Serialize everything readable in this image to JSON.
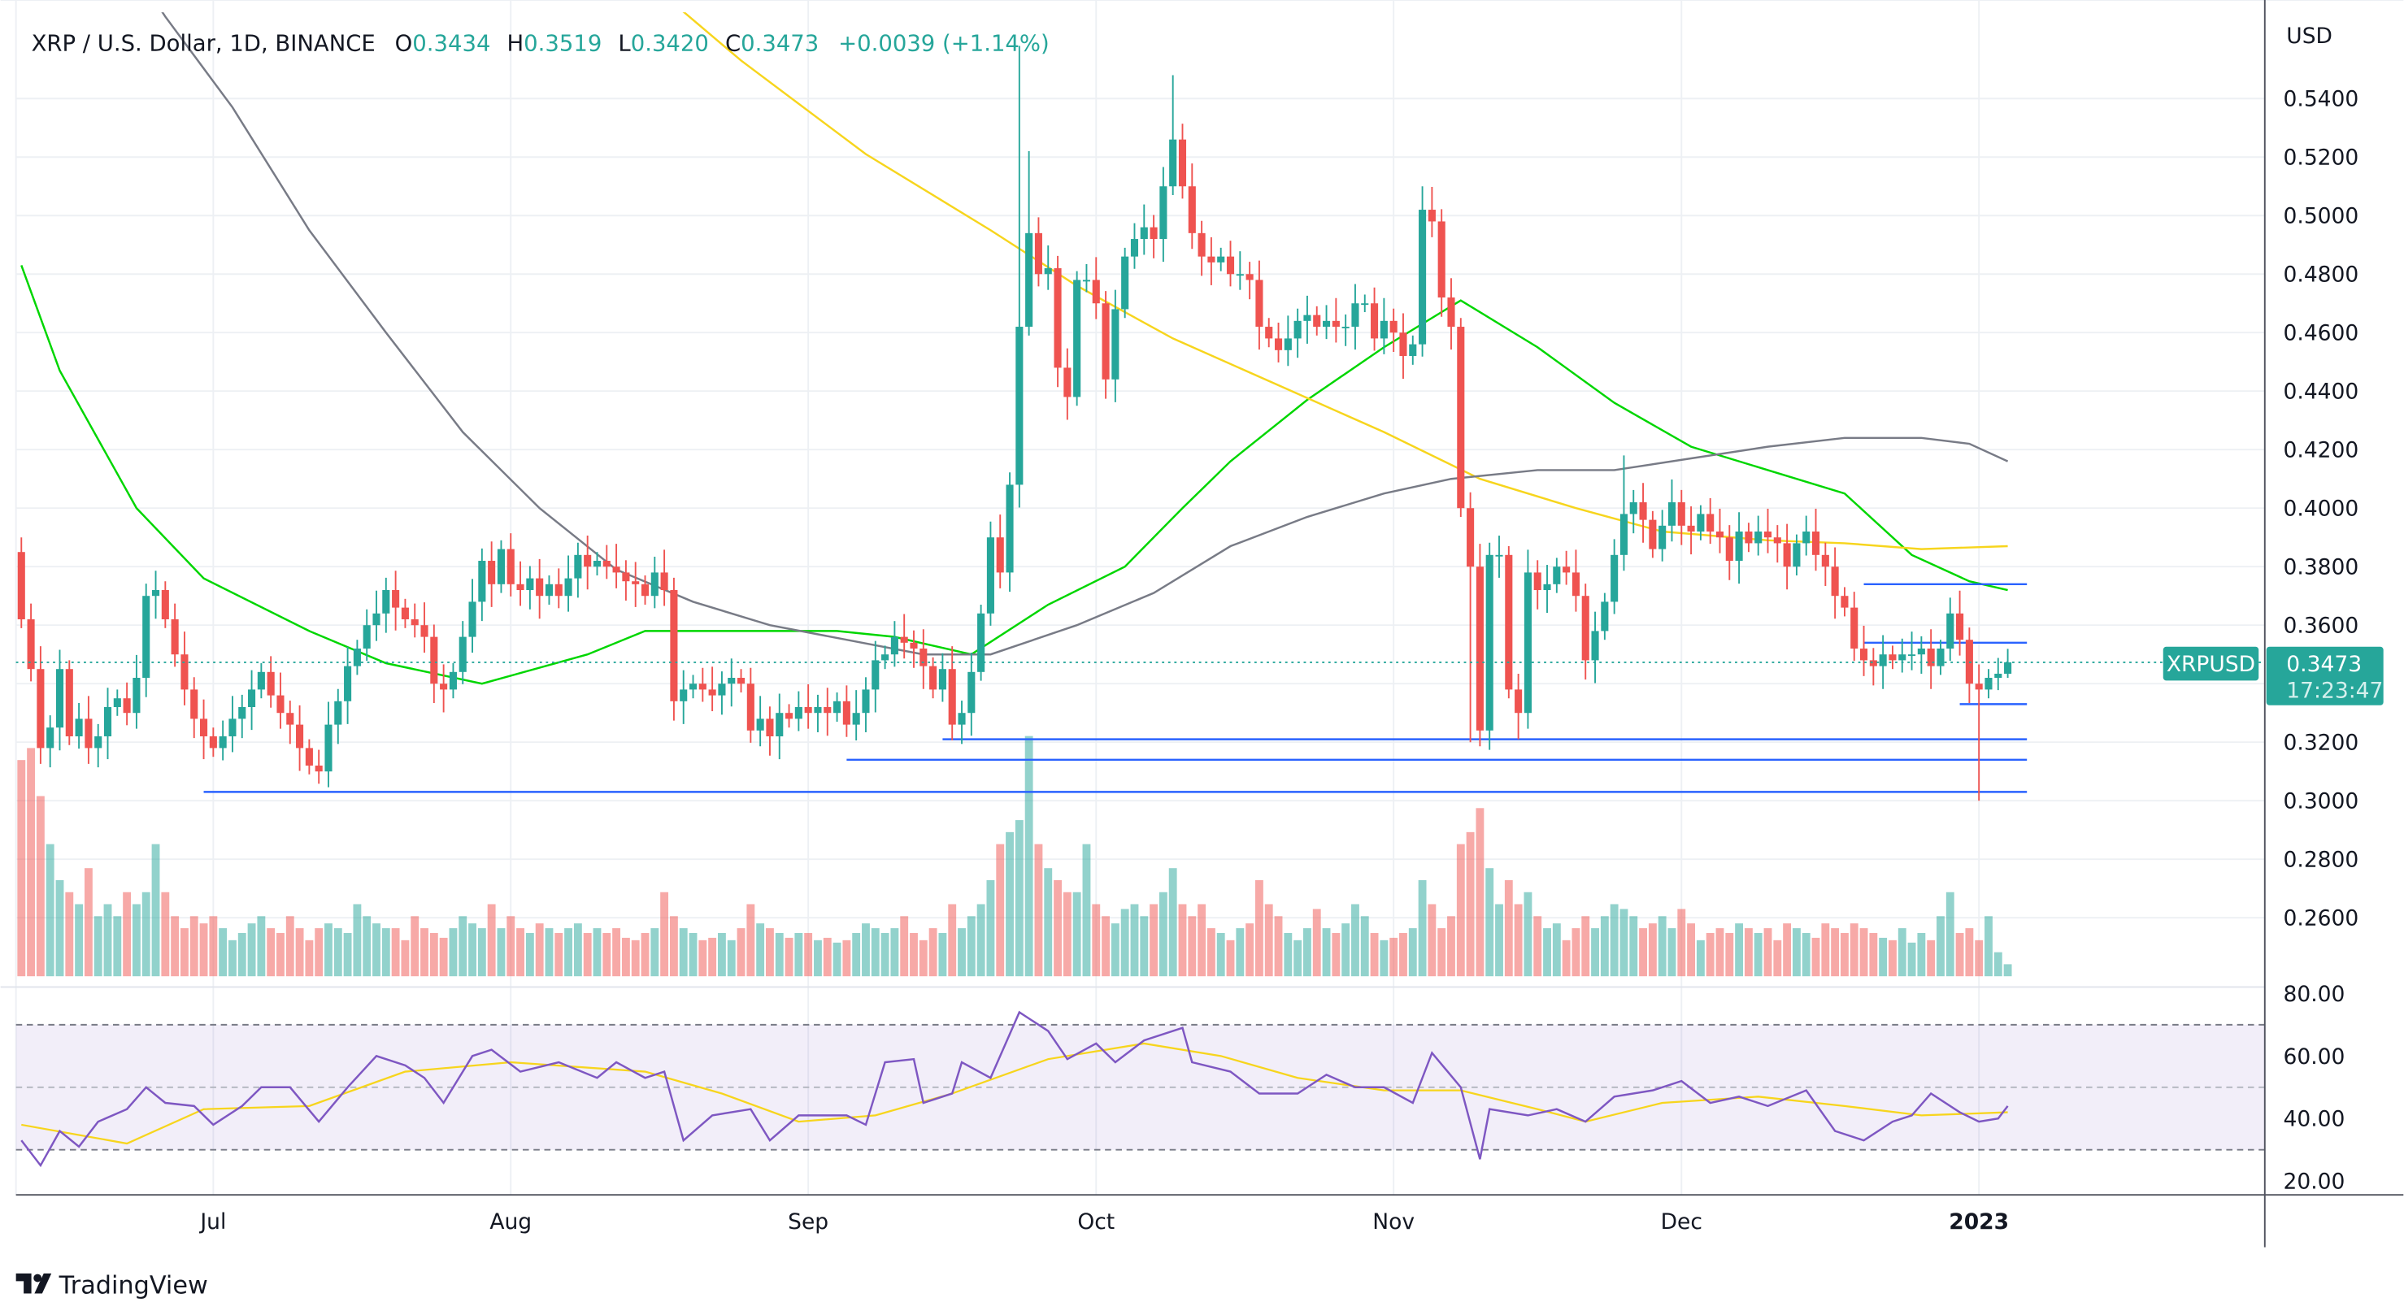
{
  "header": {
    "symbol_title": "XRP / U.S. Dollar, 1D, BINANCE",
    "o_label": "O",
    "o_value": "0.3434",
    "h_label": "H",
    "h_value": "0.3519",
    "l_label": "L",
    "l_value": "0.3420",
    "c_label": "C",
    "c_value": "0.3473",
    "change": "+0.0039 (+1.14%)"
  },
  "price_axis": {
    "currency": "USD",
    "labels": [
      "0.5400",
      "0.5200",
      "0.5000",
      "0.4800",
      "0.4600",
      "0.4400",
      "0.4200",
      "0.4000",
      "0.3800",
      "0.3600",
      "0.3200",
      "0.3000",
      "0.2800",
      "0.2600"
    ]
  },
  "last_price": {
    "symbol": "XRPUSD",
    "price": "0.3473",
    "countdown": "17:23:47"
  },
  "time_axis": {
    "labels": [
      "Jul",
      "Aug",
      "Sep",
      "Oct",
      "Nov",
      "Dec",
      "2023"
    ]
  },
  "rsi_axis": {
    "labels": [
      "80.00",
      "60.00",
      "40.00",
      "20.00"
    ]
  },
  "branding": {
    "logo_text": "TradingView"
  },
  "colors": {
    "up": "#26a69a",
    "down": "#ef5350",
    "ma_fast": "#00d600",
    "ma_mid": "#f7d51d",
    "ma_slow": "#787b86",
    "level": "#2962ff",
    "rsi": "#7e57c2",
    "rsi_ma": "#f7d51d"
  },
  "chart_data": {
    "type": "candlestick",
    "title": "XRP / U.S. Dollar, 1D, BINANCE",
    "x_start": "2022-06-11",
    "x_end": "2023-01-04",
    "x_unit": "day index from 2022-06-11",
    "ylim": [
      0.245,
      0.575
    ],
    "first_open": 0.385,
    "closes": [
      0.362,
      0.345,
      0.318,
      0.325,
      0.345,
      0.322,
      0.328,
      0.318,
      0.322,
      0.332,
      0.335,
      0.33,
      0.342,
      0.37,
      0.372,
      0.362,
      0.35,
      0.338,
      0.328,
      0.322,
      0.318,
      0.322,
      0.328,
      0.332,
      0.338,
      0.344,
      0.336,
      0.33,
      0.326,
      0.318,
      0.312,
      0.31,
      0.326,
      0.334,
      0.346,
      0.352,
      0.36,
      0.364,
      0.372,
      0.366,
      0.362,
      0.36,
      0.356,
      0.34,
      0.338,
      0.344,
      0.356,
      0.368,
      0.382,
      0.374,
      0.386,
      0.374,
      0.372,
      0.376,
      0.37,
      0.374,
      0.37,
      0.376,
      0.384,
      0.38,
      0.382,
      0.38,
      0.378,
      0.375,
      0.374,
      0.37,
      0.378,
      0.372,
      0.334,
      0.338,
      0.34,
      0.338,
      0.336,
      0.34,
      0.342,
      0.34,
      0.324,
      0.328,
      0.322,
      0.33,
      0.328,
      0.332,
      0.33,
      0.332,
      0.33,
      0.334,
      0.326,
      0.33,
      0.338,
      0.348,
      0.35,
      0.356,
      0.354,
      0.352,
      0.346,
      0.338,
      0.345,
      0.326,
      0.33,
      0.344,
      0.364,
      0.39,
      0.378,
      0.408,
      0.462,
      0.494,
      0.48,
      0.482,
      0.448,
      0.438,
      0.478,
      0.478,
      0.47,
      0.444,
      0.468,
      0.486,
      0.492,
      0.496,
      0.492,
      0.51,
      0.526,
      0.51,
      0.494,
      0.486,
      0.484,
      0.486,
      0.48,
      0.48,
      0.478,
      0.462,
      0.458,
      0.454,
      0.458,
      0.464,
      0.466,
      0.462,
      0.464,
      0.462,
      0.462,
      0.47,
      0.47,
      0.458,
      0.464,
      0.46,
      0.452,
      0.456,
      0.502,
      0.498,
      0.472,
      0.462,
      0.4,
      0.38,
      0.324,
      0.384,
      0.384,
      0.338,
      0.33,
      0.378,
      0.372,
      0.374,
      0.38,
      0.378,
      0.37,
      0.348,
      0.358,
      0.368,
      0.384,
      0.398,
      0.402,
      0.396,
      0.386,
      0.394,
      0.402,
      0.394,
      0.392,
      0.398,
      0.392,
      0.39,
      0.382,
      0.392,
      0.388,
      0.392,
      0.39,
      0.388,
      0.38,
      0.388,
      0.392,
      0.384,
      0.38,
      0.37,
      0.366,
      0.352,
      0.348,
      0.346,
      0.35,
      0.348,
      0.35,
      0.35,
      0.352,
      0.346,
      0.352,
      0.364,
      0.355,
      0.34,
      0.338,
      0.342,
      0.3434,
      0.3473
    ],
    "wick_extremes": [
      {
        "day": 0,
        "high": 0.39
      },
      {
        "day": 104,
        "high": 0.558
      },
      {
        "day": 105,
        "high": 0.522
      },
      {
        "day": 120,
        "high": 0.548
      },
      {
        "day": 146,
        "high": 0.51
      },
      {
        "day": 151,
        "low": 0.32
      },
      {
        "day": 156,
        "low": 0.321
      },
      {
        "day": 167,
        "high": 0.418
      },
      {
        "day": 204,
        "low": 0.3
      },
      {
        "day": 207,
        "high": 0.3519,
        "low": 0.342
      }
    ],
    "volume_relative": [
      90,
      95,
      75,
      55,
      40,
      35,
      30,
      45,
      25,
      30,
      25,
      35,
      30,
      35,
      55,
      35,
      25,
      20,
      25,
      22,
      25,
      20,
      15,
      18,
      22,
      25,
      20,
      18,
      25,
      20,
      15,
      20,
      22,
      20,
      18,
      30,
      25,
      22,
      20,
      20,
      15,
      25,
      20,
      18,
      16,
      20,
      25,
      22,
      20,
      30,
      20,
      25,
      20,
      18,
      22,
      20,
      18,
      20,
      22,
      18,
      20,
      18,
      20,
      16,
      15,
      18,
      20,
      35,
      25,
      20,
      18,
      15,
      16,
      18,
      15,
      20,
      30,
      22,
      20,
      18,
      16,
      18,
      18,
      15,
      16,
      14,
      15,
      18,
      22,
      20,
      18,
      20,
      25,
      18,
      15,
      20,
      18,
      30,
      20,
      25,
      30,
      40,
      55,
      60,
      65,
      100,
      55,
      45,
      40,
      35,
      35,
      55,
      30,
      25,
      22,
      28,
      30,
      25,
      30,
      35,
      45,
      30,
      25,
      30,
      20,
      18,
      15,
      20,
      22,
      40,
      30,
      25,
      18,
      15,
      20,
      28,
      20,
      18,
      22,
      30,
      25,
      18,
      15,
      16,
      18,
      20,
      40,
      30,
      20,
      25,
      55,
      60,
      70,
      45,
      30,
      40,
      30,
      35,
      25,
      20,
      22,
      15,
      20,
      25,
      20,
      25,
      30,
      28,
      25,
      20,
      22,
      25,
      20,
      28,
      22,
      15,
      18,
      20,
      18,
      22,
      20,
      18,
      20,
      15,
      22,
      20,
      18,
      16,
      22,
      20,
      18,
      22,
      20,
      18,
      16,
      15,
      20,
      14,
      18,
      15,
      25,
      35,
      18,
      20,
      15,
      25,
      10,
      5
    ],
    "moving_averages": [
      {
        "name": "MA fast (green)",
        "points": [
          [
            0,
            0.483
          ],
          [
            4,
            0.447
          ],
          [
            12,
            0.4
          ],
          [
            19,
            0.376
          ],
          [
            30,
            0.358
          ],
          [
            38,
            0.347
          ],
          [
            48,
            0.34
          ],
          [
            59,
            0.35
          ],
          [
            65,
            0.358
          ],
          [
            75,
            0.358
          ],
          [
            85,
            0.358
          ],
          [
            91,
            0.356
          ],
          [
            99,
            0.35
          ],
          [
            107,
            0.367
          ],
          [
            115,
            0.38
          ],
          [
            121,
            0.4
          ],
          [
            126,
            0.416
          ],
          [
            134,
            0.437
          ],
          [
            142,
            0.455
          ],
          [
            150,
            0.471
          ],
          [
            158,
            0.455
          ],
          [
            166,
            0.436
          ],
          [
            174,
            0.421
          ],
          [
            182,
            0.413
          ],
          [
            190,
            0.405
          ],
          [
            197,
            0.384
          ],
          [
            203,
            0.375
          ],
          [
            207,
            0.372
          ]
        ]
      },
      {
        "name": "MA mid (yellow)",
        "points": [
          [
            66,
            0.578
          ],
          [
            75,
            0.553
          ],
          [
            88,
            0.521
          ],
          [
            101,
            0.495
          ],
          [
            110,
            0.476
          ],
          [
            120,
            0.458
          ],
          [
            131,
            0.442
          ],
          [
            142,
            0.426
          ],
          [
            152,
            0.41
          ],
          [
            162,
            0.4
          ],
          [
            171,
            0.392
          ],
          [
            182,
            0.389
          ],
          [
            190,
            0.388
          ],
          [
            198,
            0.386
          ],
          [
            207,
            0.387
          ]
        ]
      },
      {
        "name": "MA slow (gray)",
        "points": [
          [
            13,
            0.578
          ],
          [
            15,
            0.568
          ],
          [
            22,
            0.537
          ],
          [
            30,
            0.495
          ],
          [
            38,
            0.46
          ],
          [
            46,
            0.426
          ],
          [
            54,
            0.4
          ],
          [
            62,
            0.379
          ],
          [
            70,
            0.368
          ],
          [
            78,
            0.36
          ],
          [
            86,
            0.355
          ],
          [
            94,
            0.35
          ],
          [
            101,
            0.35
          ],
          [
            110,
            0.36
          ],
          [
            118,
            0.371
          ],
          [
            126,
            0.387
          ],
          [
            134,
            0.397
          ],
          [
            142,
            0.405
          ],
          [
            149,
            0.41
          ],
          [
            158,
            0.413
          ],
          [
            166,
            0.413
          ],
          [
            174,
            0.417
          ],
          [
            182,
            0.421
          ],
          [
            190,
            0.424
          ],
          [
            198,
            0.424
          ],
          [
            203,
            0.422
          ],
          [
            207,
            0.416
          ]
        ]
      }
    ],
    "horizontal_levels": [
      {
        "price": 0.303,
        "from_day": 19,
        "to_day": 209
      },
      {
        "price": 0.314,
        "from_day": 86,
        "to_day": 209
      },
      {
        "price": 0.321,
        "from_day": 96,
        "to_day": 209
      },
      {
        "price": 0.333,
        "from_day": 202,
        "to_day": 209
      },
      {
        "price": 0.354,
        "from_day": 192,
        "to_day": 209
      },
      {
        "price": 0.374,
        "from_day": 192,
        "to_day": 209
      }
    ],
    "month_ticks": [
      {
        "label": "Jul",
        "day": 20
      },
      {
        "label": "Aug",
        "day": 51
      },
      {
        "label": "Sep",
        "day": 82
      },
      {
        "label": "Oct",
        "day": 112
      },
      {
        "label": "Nov",
        "day": 143
      },
      {
        "label": "Dec",
        "day": 173
      },
      {
        "label": "2023",
        "day": 204
      }
    ],
    "rsi": {
      "ylim": [
        20,
        80
      ],
      "upper_band": 70,
      "middle": 50,
      "lower_band": 30,
      "points": [
        [
          0,
          33
        ],
        [
          2,
          25
        ],
        [
          4,
          36
        ],
        [
          6,
          31
        ],
        [
          8,
          39
        ],
        [
          11,
          43
        ],
        [
          13,
          50
        ],
        [
          15,
          45
        ],
        [
          18,
          44
        ],
        [
          20,
          38
        ],
        [
          23,
          44
        ],
        [
          25,
          50
        ],
        [
          28,
          50
        ],
        [
          31,
          39
        ],
        [
          34,
          50
        ],
        [
          37,
          60
        ],
        [
          40,
          57
        ],
        [
          42,
          53
        ],
        [
          44,
          45
        ],
        [
          47,
          60
        ],
        [
          49,
          62
        ],
        [
          52,
          55
        ],
        [
          56,
          58
        ],
        [
          60,
          53
        ],
        [
          62,
          58
        ],
        [
          65,
          53
        ],
        [
          67,
          55
        ],
        [
          69,
          33
        ],
        [
          72,
          41
        ],
        [
          76,
          43
        ],
        [
          78,
          33
        ],
        [
          81,
          41
        ],
        [
          86,
          41
        ],
        [
          88,
          38
        ],
        [
          90,
          58
        ],
        [
          93,
          59
        ],
        [
          94,
          45
        ],
        [
          97,
          48
        ],
        [
          98,
          58
        ],
        [
          101,
          53
        ],
        [
          104,
          74
        ],
        [
          107,
          68
        ],
        [
          109,
          59
        ],
        [
          112,
          64
        ],
        [
          114,
          58
        ],
        [
          117,
          65
        ],
        [
          121,
          69
        ],
        [
          122,
          58
        ],
        [
          126,
          55
        ],
        [
          129,
          48
        ],
        [
          133,
          48
        ],
        [
          136,
          54
        ],
        [
          139,
          50
        ],
        [
          142,
          50
        ],
        [
          145,
          45
        ],
        [
          147,
          61
        ],
        [
          150,
          50
        ],
        [
          152,
          27
        ],
        [
          153,
          43
        ],
        [
          157,
          41
        ],
        [
          160,
          43
        ],
        [
          163,
          39
        ],
        [
          166,
          47
        ],
        [
          170,
          49
        ],
        [
          173,
          52
        ],
        [
          176,
          45
        ],
        [
          179,
          47
        ],
        [
          182,
          44
        ],
        [
          186,
          49
        ],
        [
          189,
          36
        ],
        [
          192,
          33
        ],
        [
          195,
          39
        ],
        [
          197,
          41
        ],
        [
          199,
          48
        ],
        [
          202,
          42
        ],
        [
          204,
          39
        ],
        [
          206,
          40
        ],
        [
          207,
          44
        ]
      ],
      "ma_points": [
        [
          0,
          38
        ],
        [
          11,
          32
        ],
        [
          19,
          43
        ],
        [
          30,
          44
        ],
        [
          40,
          55
        ],
        [
          51,
          58
        ],
        [
          65,
          55
        ],
        [
          73,
          48
        ],
        [
          81,
          39
        ],
        [
          89,
          41
        ],
        [
          97,
          48
        ],
        [
          107,
          59
        ],
        [
          117,
          64
        ],
        [
          125,
          60
        ],
        [
          133,
          53
        ],
        [
          142,
          49
        ],
        [
          150,
          49
        ],
        [
          158,
          43
        ],
        [
          163,
          39
        ],
        [
          171,
          45
        ],
        [
          181,
          47
        ],
        [
          190,
          44
        ],
        [
          198,
          41
        ],
        [
          207,
          42
        ]
      ]
    }
  }
}
